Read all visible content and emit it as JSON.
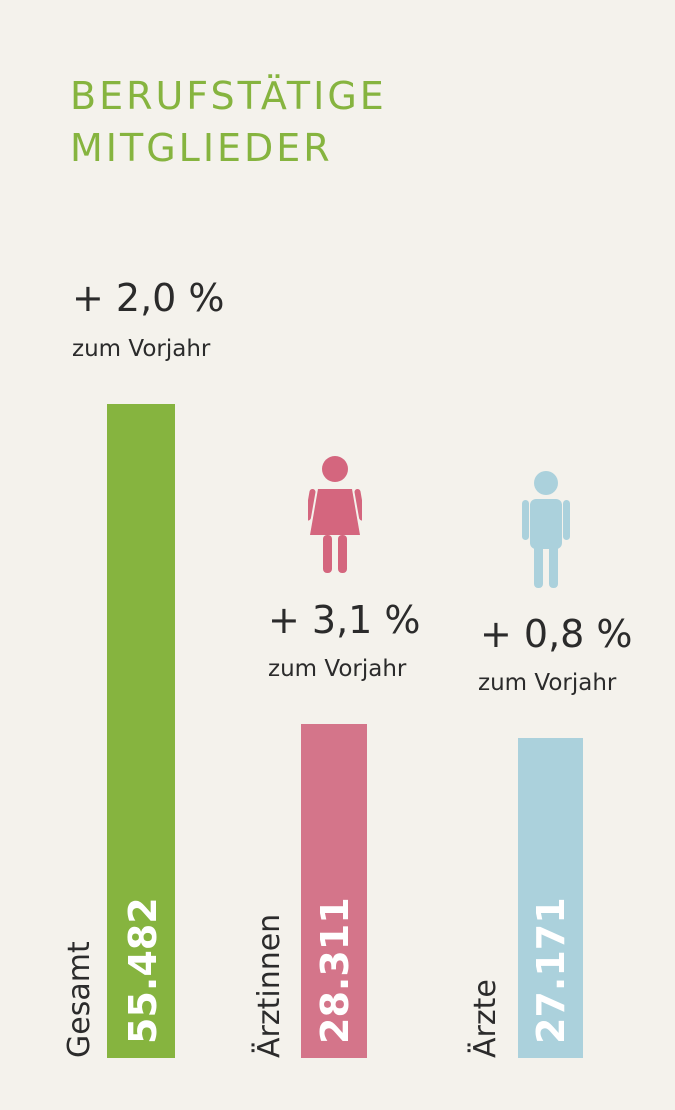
{
  "title_lines": [
    "BERUFSTÄTIGE",
    "MITGLIEDER"
  ],
  "colors": {
    "background": "#f4f2ec",
    "title": "#86b43f",
    "text": "#2b2b2b"
  },
  "chart_data": {
    "type": "bar",
    "title": "BERUFSTÄTIGE MITGLIEDER",
    "categories": [
      "Gesamt",
      "Ärztinnen",
      "Ärzte"
    ],
    "values": [
      55482,
      28311,
      27171
    ],
    "value_labels": [
      "55.482",
      "28.311",
      "27.171"
    ],
    "changes": [
      "+ 2,0 %",
      "+ 3,1 %",
      "+ 0,8 %"
    ],
    "change_note": "zum Vorjahr",
    "bar_colors": [
      "#86b43f",
      "#d4758a",
      "#abd1dc"
    ],
    "icons": [
      null,
      "female-person-icon",
      "male-person-icon"
    ],
    "icon_colors": [
      null,
      "#d4667e",
      "#abd1dc"
    ]
  }
}
